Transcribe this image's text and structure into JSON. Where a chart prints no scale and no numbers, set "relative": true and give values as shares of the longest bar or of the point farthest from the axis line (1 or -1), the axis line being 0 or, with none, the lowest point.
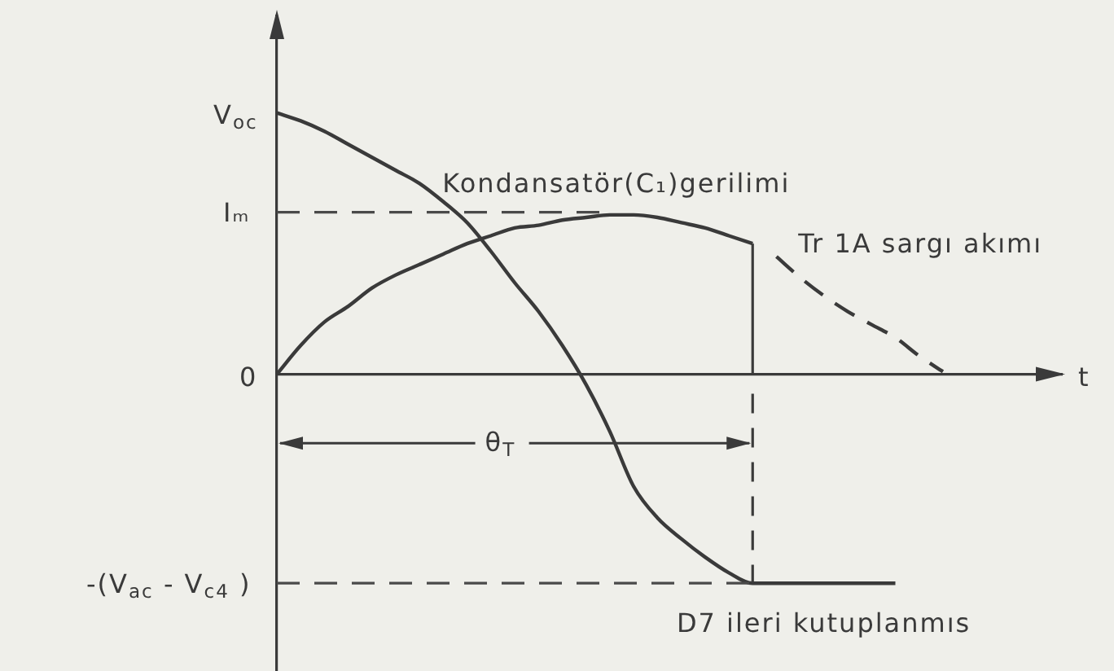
{
  "chart_data": {
    "type": "line",
    "relative": true,
    "xlabel": "t",
    "categories": [
      null,
      null,
      null,
      null,
      null,
      null,
      null,
      null,
      null,
      null,
      null,
      null,
      null,
      null,
      null,
      null,
      null,
      null,
      null,
      null,
      null,
      null,
      null,
      null,
      null,
      null,
      null,
      null,
      null,
      null,
      null,
      null,
      null,
      null
    ],
    "series": [
      {
        "name": "Kondansatör(C₁)gerilimi",
        "color": "#3a3a3a",
        "values": [
          1,
          0.97,
          0.93,
          0.88,
          0.83,
          0.78,
          0.73,
          0.66,
          0.58,
          0.47,
          0.35,
          0.24,
          0.11,
          -0.04,
          -0.22,
          -0.43,
          -0.55,
          -0.63,
          -0.7,
          -0.76,
          -0.8,
          -0.8,
          -0.8,
          -0.8,
          -0.8,
          -0.8,
          -0.8,
          null,
          null,
          null,
          null,
          null,
          null,
          null
        ]
      },
      {
        "name": "Tr 1A sargı akımı",
        "color": "#3a3a3a",
        "values": [
          0,
          0.11,
          0.2,
          0.26,
          0.33,
          0.38,
          0.42,
          0.46,
          0.5,
          0.53,
          0.56,
          0.57,
          0.59,
          0.6,
          0.61,
          0.61,
          0.6,
          0.58,
          0.56,
          0.53,
          0.5,
          null,
          null,
          null,
          null,
          null,
          null,
          null,
          null,
          null,
          null,
          null,
          null,
          null
        ]
      },
      {
        "color": "#3a3a3a",
        "line_style": "dashed",
        "values": [
          null,
          null,
          null,
          null,
          null,
          null,
          null,
          null,
          null,
          null,
          null,
          null,
          null,
          null,
          null,
          null,
          null,
          null,
          null,
          null,
          null,
          0.45,
          0.37,
          0.3,
          0.24,
          0.19,
          0.14,
          0.07,
          0.01,
          null,
          null,
          null,
          null,
          null
        ]
      }
    ],
    "ref_lines": [
      {
        "axis": "y",
        "value": 0.62,
        "label": "Iₘ",
        "line_style": "dashed",
        "color": "#4a4a4a"
      },
      {
        "axis": "y",
        "value": -0.8,
        "label": "-(V$_{ac}$ - V$_{c4}$ )",
        "line_style": "dashed",
        "color": "#4a4a4a"
      }
    ],
    "annotations": [
      "V$_{oc}$",
      "0",
      "θ$_{T}$",
      {
        "text": "D7 ileri kutuplanmıs",
        "y": -0.8
      }
    ],
    "marker": "none",
    "grid": false,
    "legend": false
  }
}
